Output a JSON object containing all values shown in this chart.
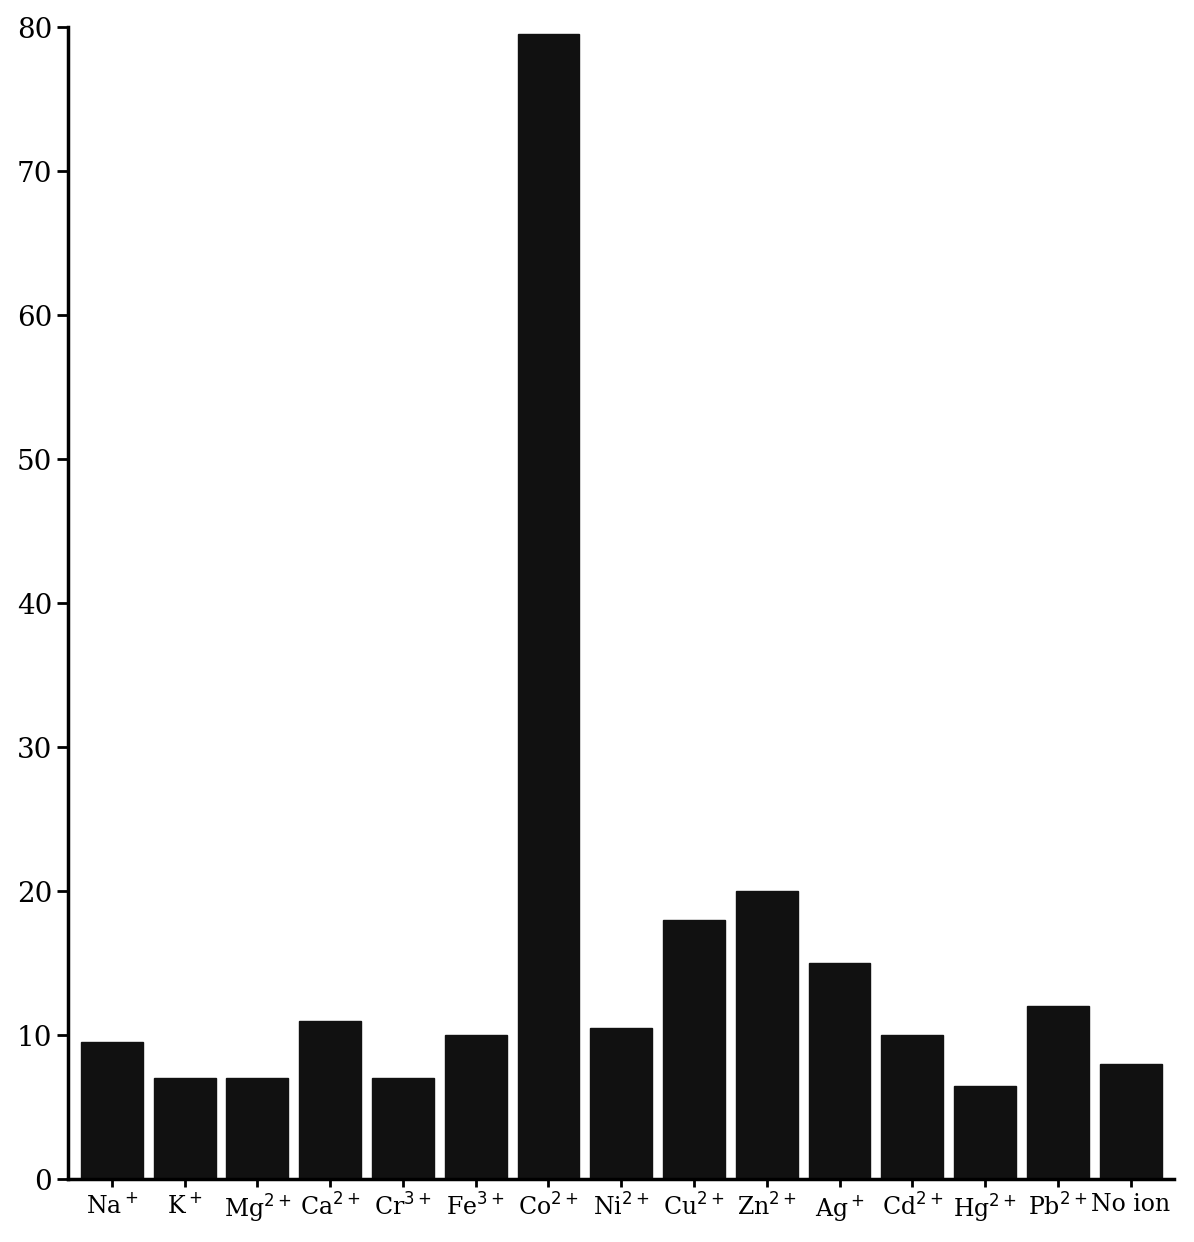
{
  "values": [
    9.5,
    7.0,
    7.0,
    11.0,
    7.0,
    10.0,
    79.5,
    10.5,
    18.0,
    20.0,
    15.0,
    10.0,
    6.5,
    12.0,
    8.0
  ],
  "bar_color": "#111111",
  "ylim": [
    0,
    80
  ],
  "yticks": [
    0,
    10,
    20,
    30,
    40,
    50,
    60,
    70,
    80
  ],
  "background_color": "#ffffff",
  "bar_width": 0.85,
  "tick_fontsize": 20,
  "label_fontsize": 17
}
